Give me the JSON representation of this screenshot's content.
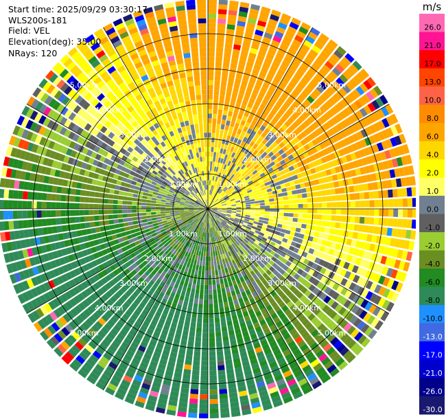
{
  "info": {
    "start_time": "Start time: 2025/09/29 03:30:17",
    "instrument": "WLS200s-181",
    "field": "Field: VEL",
    "elevation": "Elevation(deg): 35.00",
    "nrays": "NRays: 120"
  },
  "chart_data": {
    "type": "heatmap",
    "projection": "polar-ppi",
    "field": "VEL",
    "units": "m/s",
    "nrays": 120,
    "elevation_deg": 35.0,
    "range_km": [
      0,
      5.5
    ],
    "range_ring_labels": [
      "1.00km",
      "2.00km",
      "3.00km",
      "4.00km",
      "5.00km"
    ],
    "range_rings_km": [
      1,
      2,
      3,
      4,
      5
    ],
    "colorbar": {
      "unit_label": "m/s",
      "ticks": [
        "26.0",
        "21.0",
        "17.0",
        "13.0",
        "10.0",
        "8.0",
        "6.0",
        "4.0",
        "2.0",
        "1.0",
        "0.0",
        "-1.0",
        "-2.0",
        "-4.0",
        "-6.0",
        "-8.0",
        "-10.0",
        "-13.0",
        "-17.0",
        "-21.0",
        "-26.0",
        "-30.0"
      ],
      "colors": [
        "#ff69b4",
        "#ff1493",
        "#ff0000",
        "#ff4500",
        "#ff6347",
        "#ff8c00",
        "#ffa500",
        "#ffd700",
        "#ffff00",
        "#ffff66",
        "#708090",
        "#606060",
        "#9acd32",
        "#6b8e23",
        "#228b22",
        "#2e8b57",
        "#1e90ff",
        "#4169e1",
        "#0000ff",
        "#0000cd",
        "#00008b",
        "#191970"
      ]
    }
  }
}
